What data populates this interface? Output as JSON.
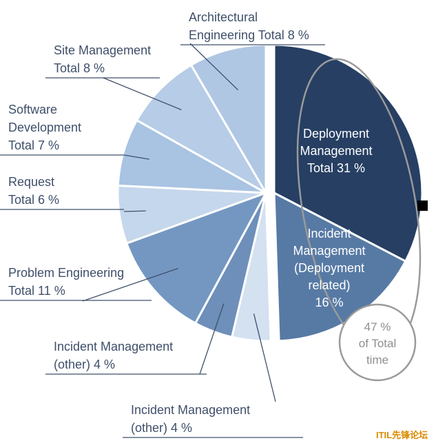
{
  "chart_data": {
    "type": "pie",
    "slices": [
      {
        "lines": [
          "Deployment",
          "Management",
          "Total 31 %"
        ],
        "value": 31,
        "color": "#263f63",
        "inside": true
      },
      {
        "lines": [
          "Incident",
          "Management",
          "(Deployment",
          "related)",
          "16 %"
        ],
        "value": 16,
        "color": "#577aa5",
        "inside": true
      },
      {
        "lines": [
          "Incident Management",
          "(other) 4 %"
        ],
        "value": 4,
        "color": "#d3e1f1"
      },
      {
        "lines": [
          "Incident Management",
          "(other) 4 %"
        ],
        "value": 4,
        "color": "#6d8fba"
      },
      {
        "lines": [
          "Problem Engineering",
          "Total 11 %"
        ],
        "value": 11,
        "color": "#7497c2"
      },
      {
        "lines": [
          "Request",
          "Total 6 %"
        ],
        "value": 6,
        "color": "#c5d7ec"
      },
      {
        "lines": [
          "Software",
          "Development",
          "Total 7 %"
        ],
        "value": 7,
        "color": "#a9c3e2"
      },
      {
        "lines": [
          "Site Management",
          "Total 8 %"
        ],
        "value": 8,
        "color": "#b6cce7"
      },
      {
        "lines": [
          "Architectural",
          "Engineering Total 8 %"
        ],
        "value": 8,
        "color": "#b0c7e4"
      }
    ],
    "callout": {
      "lines": [
        "47 %",
        "of Total",
        "time"
      ]
    }
  },
  "watermark": "ITIL先锋论坛"
}
